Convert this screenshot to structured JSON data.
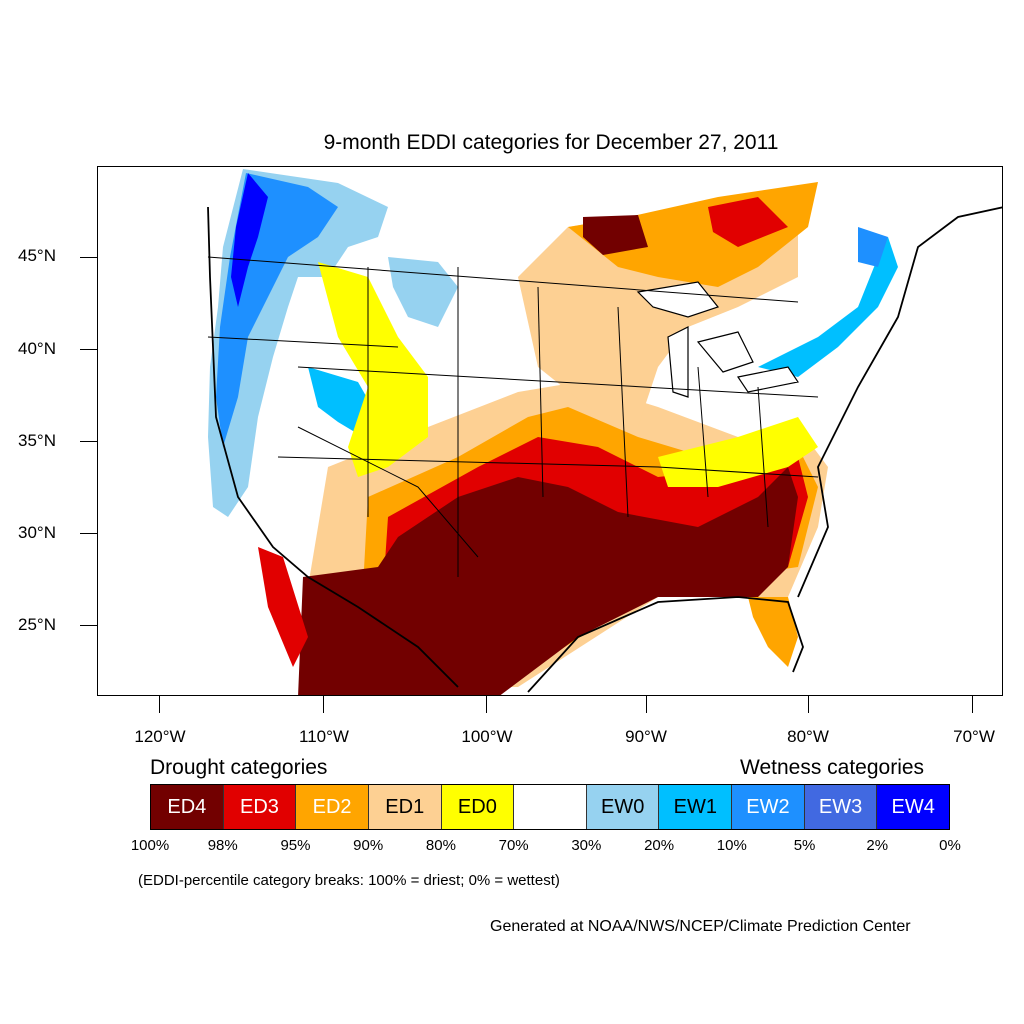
{
  "title": "9-month EDDI categories for December 27, 2011",
  "lat_labels": [
    "45°N",
    "40°N",
    "35°N",
    "30°N",
    "25°N"
  ],
  "lon_labels": [
    "120°W",
    "110°W",
    "100°W",
    "90°W",
    "80°W",
    "70°W"
  ],
  "legend": {
    "drought_heading": "Drought categories",
    "wetness_heading": "Wetness categories",
    "categories": [
      {
        "label": "ED4",
        "color": "#720000",
        "text_color": "#ffffff"
      },
      {
        "label": "ED3",
        "color": "#e10000",
        "text_color": "#ffffff"
      },
      {
        "label": "ED2",
        "color": "#ffa500",
        "text_color": "#ffffff"
      },
      {
        "label": "ED1",
        "color": "#fdd093",
        "text_color": "#000000"
      },
      {
        "label": "ED0",
        "color": "#ffff00",
        "text_color": "#000000"
      },
      {
        "label": "",
        "color": "#ffffff",
        "text_color": "#000000"
      },
      {
        "label": "EW0",
        "color": "#96d2f0",
        "text_color": "#000000"
      },
      {
        "label": "EW1",
        "color": "#00bfff",
        "text_color": "#000000"
      },
      {
        "label": "EW2",
        "color": "#1e90ff",
        "text_color": "#ffffff"
      },
      {
        "label": "EW3",
        "color": "#4169e1",
        "text_color": "#ffffff"
      },
      {
        "label": "EW4",
        "color": "#0000ff",
        "text_color": "#ffffff"
      }
    ],
    "breaks": [
      "100%",
      "98%",
      "95%",
      "90%",
      "80%",
      "70%",
      "30%",
      "20%",
      "10%",
      "5%",
      "2%",
      "0%"
    ]
  },
  "note": "(EDDI-percentile category breaks: 100% = driest; 0% = wettest)",
  "credit": "Generated at NOAA/NWS/NCEP/Climate Prediction Center"
}
